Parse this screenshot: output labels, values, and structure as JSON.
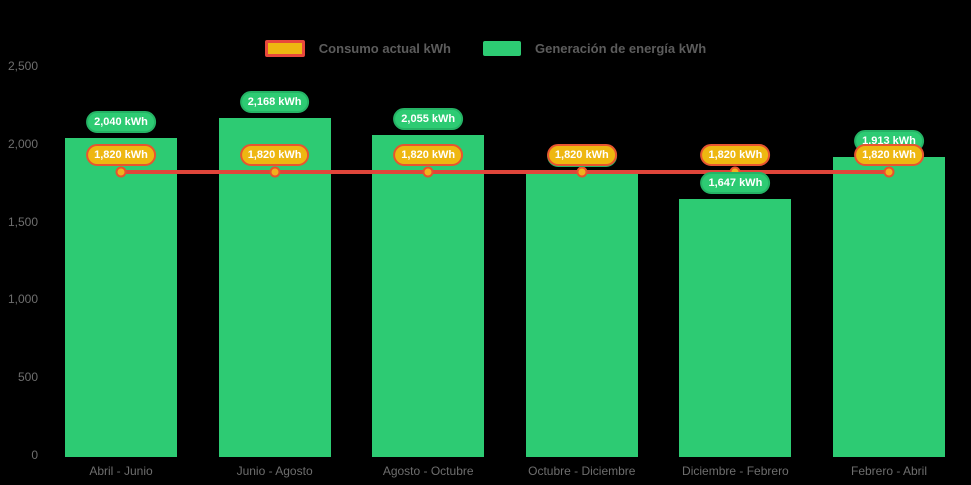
{
  "legend": {
    "items": [
      {
        "label": "Consumo actual kWh",
        "swatch": "consumo"
      },
      {
        "label": "Generación de energía kWh",
        "swatch": "generacion"
      }
    ]
  },
  "colors": {
    "background": "#000000",
    "bar_green": "#2dcb73",
    "pill_green_border": "#25b365",
    "line_red": "#e0453a",
    "pill_gold": "#eeb711",
    "pill_gold_border": "#e8552f",
    "point_fill": "#f2b01e",
    "point_border": "#e8512e",
    "axis_text": "#6e6e6e",
    "legend_text": "#5c5c5c",
    "value_label_text": "#ffffff"
  },
  "chart_data": {
    "type": "bar",
    "title": "",
    "xlabel": "",
    "ylabel": "",
    "categories": [
      "Abril - Junio",
      "Junio - Agosto",
      "Agosto - Octubre",
      "Octubre - Diciembre",
      "Diciembre - Febrero",
      "Febrero - Abril"
    ],
    "series": [
      {
        "name": "Generación de energía kWh",
        "type": "bar",
        "color": "#2dcb73",
        "values": [
          2040,
          2168,
          2055,
          1820,
          1647,
          1913
        ],
        "labels": [
          "2,040 kWh",
          "2,168 kWh",
          "2,055 kWh",
          "1,820 kWh",
          "1,647 kWh",
          "1,913 kWh"
        ]
      },
      {
        "name": "Consumo actual kWh",
        "type": "line",
        "color": "#e0453a",
        "values": [
          1820,
          1820,
          1820,
          1820,
          1820,
          1820
        ],
        "labels": [
          "1,820 kWh",
          "1,820 kWh",
          "1,820 kWh",
          "1,820 kWh",
          "1,820 kWh",
          "1,820 kWh"
        ]
      }
    ],
    "ylim": [
      0,
      2500
    ],
    "yticks": [
      0,
      500,
      1000,
      1500,
      2000,
      2500
    ],
    "ytick_labels": [
      "0",
      "500",
      "1,000",
      "1,500",
      "2,000",
      "2,500"
    ],
    "grid": false,
    "legend_position": "top"
  }
}
